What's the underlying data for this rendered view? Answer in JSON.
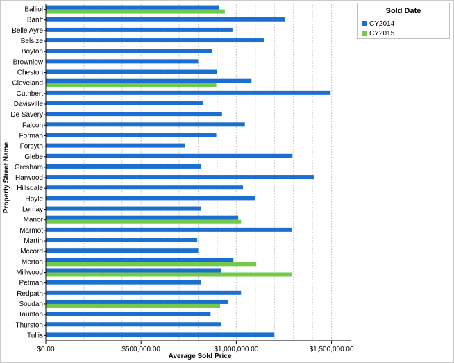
{
  "chart_data": {
    "type": "bar",
    "orientation": "horizontal",
    "xlabel": "Average Sold Price",
    "ylabel": "Property Street Name",
    "xlim": [
      0,
      1600000
    ],
    "xticks": [
      {
        "value": 0,
        "label": "$0.00"
      },
      {
        "value": 500000,
        "label": "$500,000.00"
      },
      {
        "value": 1000000,
        "label": "$1,000,000.00"
      },
      {
        "value": 1500000,
        "label": "$1,500,000.00"
      }
    ],
    "grid": "vertical dotted",
    "legend": {
      "title": "Sold Date",
      "position": "top-right"
    },
    "categories": [
      "Balliol",
      "Banff",
      "Belle Ayre",
      "Belsize",
      "Boyton",
      "Brownlow",
      "Cheston",
      "Cleveland",
      "Cuthbert",
      "Davisville",
      "De Savery",
      "Falcon",
      "Forman",
      "Forsyth",
      "Glebe",
      "Gresham",
      "Harwood",
      "Hillsdale",
      "Hoyle",
      "Lemay",
      "Manor",
      "Marmot",
      "Martin",
      "Mccord",
      "Merton",
      "Millwood",
      "Petman",
      "Redpath",
      "Soudan",
      "Taunton",
      "Thurston",
      "Tullis"
    ],
    "series": [
      {
        "name": "CY2014",
        "color": "#1a6fd0",
        "values": [
          910000,
          1255000,
          980000,
          1145000,
          875000,
          800000,
          900000,
          1080000,
          1495000,
          825000,
          925000,
          1045000,
          895000,
          730000,
          1295000,
          815000,
          1410000,
          1035000,
          1100000,
          815000,
          1010000,
          1290000,
          795000,
          800000,
          985000,
          920000,
          815000,
          1025000,
          955000,
          865000,
          920000,
          1200000
        ]
      },
      {
        "name": "CY2015",
        "color": "#73c94a",
        "values": [
          940000,
          null,
          null,
          null,
          null,
          null,
          null,
          895000,
          null,
          null,
          null,
          null,
          null,
          null,
          null,
          null,
          null,
          null,
          null,
          null,
          1025000,
          null,
          null,
          null,
          1105000,
          1290000,
          null,
          null,
          915000,
          null,
          null,
          null
        ]
      }
    ]
  }
}
